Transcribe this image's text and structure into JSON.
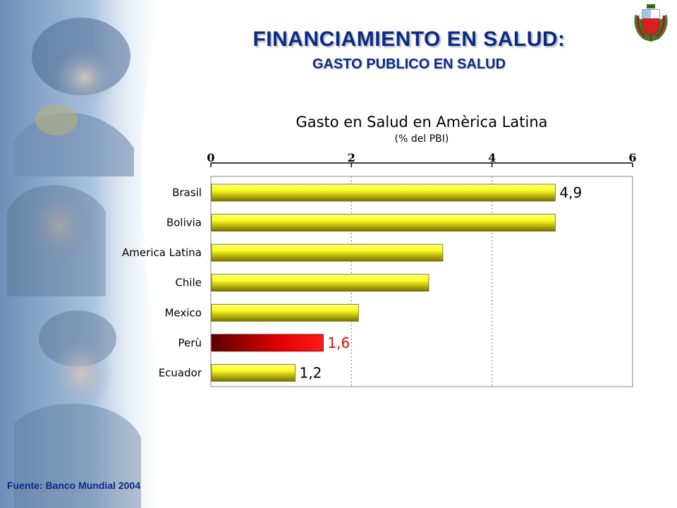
{
  "slide": {
    "title": "FINANCIAMIENTO EN SALUD:",
    "subtitle": "GASTO PUBLICO EN SALUD",
    "source": "Fuente: Banco Mundial 2004"
  },
  "colors": {
    "title": "#0a2a8a",
    "bar_light": "#ffff33",
    "bar_dark": "#7a7000",
    "highlight_light": "#ff0000",
    "highlight_dark": "#5a0000",
    "highlight_label": "#ee0000"
  },
  "chart_data": {
    "type": "bar",
    "orientation": "horizontal",
    "title": "Gasto en Salud en Amèrica Latina",
    "subtitle": "(% del PBI)",
    "categories": [
      "Brasil",
      "Bolivia",
      "America Latina",
      "Chile",
      "Mexico",
      "Perù",
      "Ecuador"
    ],
    "values": [
      4.9,
      4.9,
      3.3,
      3.1,
      2.1,
      1.6,
      1.2
    ],
    "data_labels": [
      "4,9",
      "",
      "",
      "",
      "",
      "1,6",
      "1,2"
    ],
    "highlight_index": 5,
    "xlim": [
      0,
      6
    ],
    "x_ticks": [
      0,
      2,
      4,
      6
    ],
    "x_tick_labels": [
      "0",
      "2",
      "4",
      "6"
    ],
    "axis_position": "top",
    "grid": "vertical-dotted"
  },
  "decorations": {
    "left_panel": "photo-collage",
    "crest": "coat-of-arms-icon"
  }
}
